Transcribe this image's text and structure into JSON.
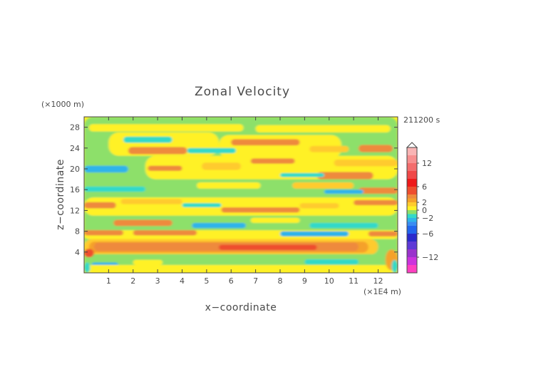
{
  "chart_data": {
    "type": "heatmap",
    "title": "Zonal Velocity",
    "xlabel": "x−coordinate",
    "ylabel": "z−coordinate",
    "x_unit": "(×1E4 m)",
    "y_unit": "(×1000 m)",
    "time_label": "211200 s",
    "xlim": [
      0,
      12.8
    ],
    "ylim": [
      0,
      30
    ],
    "x_ticks": [
      1,
      2,
      3,
      4,
      5,
      6,
      7,
      8,
      9,
      10,
      11,
      12
    ],
    "y_ticks": [
      4,
      8,
      12,
      16,
      20,
      24,
      28
    ],
    "colorbar": {
      "range": [
        -16,
        16
      ],
      "tick_values": [
        12,
        6,
        2,
        0,
        -2,
        -6,
        -12
      ],
      "tick_labels": [
        "12",
        "6",
        "2",
        "0",
        "−2",
        "−6",
        "−12"
      ],
      "levels": [
        {
          "from": -16,
          "to": -14,
          "color": "#ff3fc1"
        },
        {
          "from": -14,
          "to": -12,
          "color": "#cc33dd"
        },
        {
          "from": -12,
          "to": -10,
          "color": "#9a33cc"
        },
        {
          "from": -10,
          "to": -8,
          "color": "#5e3ad6"
        },
        {
          "from": -8,
          "to": -6,
          "color": "#2b2bcc"
        },
        {
          "from": -6,
          "to": -4,
          "color": "#2266ee"
        },
        {
          "from": -4,
          "to": -3,
          "color": "#3a8cf2"
        },
        {
          "from": -3,
          "to": -2,
          "color": "#2fb4ea"
        },
        {
          "from": -2,
          "to": -1,
          "color": "#33d9c9"
        },
        {
          "from": -1,
          "to": 0,
          "color": "#8de06a"
        },
        {
          "from": 0,
          "to": 1,
          "color": "#fff126"
        },
        {
          "from": 1,
          "to": 2,
          "color": "#ffcb2e"
        },
        {
          "from": 2,
          "to": 3,
          "color": "#f5a12a"
        },
        {
          "from": 3,
          "to": 4,
          "color": "#ee8a3c"
        },
        {
          "from": 4,
          "to": 6,
          "color": "#ee4e2e"
        },
        {
          "from": 6,
          "to": 8,
          "color": "#ee1a1a"
        },
        {
          "from": 8,
          "to": 10,
          "color": "#f04848"
        },
        {
          "from": 10,
          "to": 12,
          "color": "#f36d6d"
        },
        {
          "from": 12,
          "to": 14,
          "color": "#f79090"
        },
        {
          "from": 14,
          "to": 16,
          "color": "#f9b5b5"
        }
      ]
    },
    "background_level": 0,
    "bands": [
      {
        "x0": 0.0,
        "x1": 12.8,
        "z0": 0.0,
        "z1": 30.0,
        "v": -0.5
      },
      {
        "x0": 0.0,
        "x1": 12.8,
        "z0": 26.5,
        "z1": 30.0,
        "v": -0.5
      },
      {
        "x0": 0.2,
        "x1": 6.5,
        "z0": 27.2,
        "z1": 28.6,
        "v": 0.5
      },
      {
        "x0": 7.0,
        "x1": 12.5,
        "z0": 27.0,
        "z1": 28.4,
        "v": 0.5
      },
      {
        "x0": 1.0,
        "x1": 5.5,
        "z0": 22.5,
        "z1": 27.0,
        "v": 0.5
      },
      {
        "x0": 1.6,
        "x1": 3.6,
        "z0": 25.0,
        "z1": 26.2,
        "v": -1.5
      },
      {
        "x0": 1.8,
        "x1": 4.2,
        "z0": 22.8,
        "z1": 24.2,
        "v": 3.5
      },
      {
        "x0": 5.5,
        "x1": 10.5,
        "z0": 22.0,
        "z1": 26.5,
        "v": 0.5
      },
      {
        "x0": 6.0,
        "x1": 8.8,
        "z0": 24.5,
        "z1": 25.7,
        "v": 3.5
      },
      {
        "x0": 9.2,
        "x1": 10.8,
        "z0": 23.2,
        "z1": 24.4,
        "v": 1.5
      },
      {
        "x0": 11.2,
        "x1": 12.6,
        "z0": 23.2,
        "z1": 24.6,
        "v": 3.5
      },
      {
        "x0": 4.2,
        "x1": 6.2,
        "z0": 23.0,
        "z1": 24.0,
        "v": -1.5
      },
      {
        "x0": 0.0,
        "x1": 2.2,
        "z0": 19.0,
        "z1": 21.5,
        "v": -0.5
      },
      {
        "x0": 0.0,
        "x1": 1.8,
        "z0": 19.3,
        "z1": 20.6,
        "v": -2.5
      },
      {
        "x0": 2.5,
        "x1": 12.8,
        "z0": 18.0,
        "z1": 22.5,
        "v": 0.5
      },
      {
        "x0": 2.6,
        "x1": 4.0,
        "z0": 19.6,
        "z1": 20.6,
        "v": 3.5
      },
      {
        "x0": 4.8,
        "x1": 6.4,
        "z0": 19.8,
        "z1": 21.2,
        "v": 1.5
      },
      {
        "x0": 6.8,
        "x1": 8.6,
        "z0": 21.0,
        "z1": 22.0,
        "v": 3.5
      },
      {
        "x0": 10.2,
        "x1": 12.8,
        "z0": 20.5,
        "z1": 21.8,
        "v": 1.5
      },
      {
        "x0": 9.5,
        "x1": 11.8,
        "z0": 18.0,
        "z1": 19.4,
        "v": 3.5
      },
      {
        "x0": 8.0,
        "x1": 9.8,
        "z0": 18.4,
        "z1": 19.2,
        "v": -1.5
      },
      {
        "x0": 2.2,
        "x1": 12.8,
        "z0": 14.5,
        "z1": 17.8,
        "v": -0.5
      },
      {
        "x0": 0.0,
        "x1": 2.5,
        "z0": 15.6,
        "z1": 16.6,
        "v": -1.5
      },
      {
        "x0": 4.6,
        "x1": 7.2,
        "z0": 16.2,
        "z1": 17.4,
        "v": 0.5
      },
      {
        "x0": 8.5,
        "x1": 11.0,
        "z0": 16.2,
        "z1": 17.4,
        "v": 1.5
      },
      {
        "x0": 11.2,
        "x1": 12.8,
        "z0": 15.2,
        "z1": 16.4,
        "v": 3.5
      },
      {
        "x0": 9.8,
        "x1": 11.4,
        "z0": 15.2,
        "z1": 16.0,
        "v": -2.5
      },
      {
        "x0": 0.0,
        "x1": 12.8,
        "z0": 11.0,
        "z1": 14.5,
        "v": 0.5
      },
      {
        "x0": 0.0,
        "x1": 1.3,
        "z0": 12.4,
        "z1": 13.6,
        "v": 3.5
      },
      {
        "x0": 1.5,
        "x1": 4.0,
        "z0": 13.2,
        "z1": 14.2,
        "v": 1.5
      },
      {
        "x0": 5.6,
        "x1": 8.8,
        "z0": 11.6,
        "z1": 12.6,
        "v": 3.5
      },
      {
        "x0": 8.8,
        "x1": 10.4,
        "z0": 12.4,
        "z1": 13.4,
        "v": 1.5
      },
      {
        "x0": 11.0,
        "x1": 12.8,
        "z0": 13.0,
        "z1": 14.0,
        "v": 3.5
      },
      {
        "x0": 4.0,
        "x1": 5.6,
        "z0": 12.6,
        "z1": 13.4,
        "v": -1.5
      },
      {
        "x0": 0.0,
        "x1": 12.8,
        "z0": 8.0,
        "z1": 11.0,
        "v": -0.5
      },
      {
        "x0": 1.2,
        "x1": 3.6,
        "z0": 9.0,
        "z1": 10.2,
        "v": 3.5
      },
      {
        "x0": 4.4,
        "x1": 6.6,
        "z0": 8.6,
        "z1": 9.6,
        "v": -2.5
      },
      {
        "x0": 6.8,
        "x1": 8.8,
        "z0": 9.6,
        "z1": 10.6,
        "v": 0.5
      },
      {
        "x0": 9.2,
        "x1": 12.0,
        "z0": 8.6,
        "z1": 9.6,
        "v": -1.5
      },
      {
        "x0": 0.0,
        "x1": 12.8,
        "z0": 6.5,
        "z1": 8.2,
        "v": 0.5
      },
      {
        "x0": 0.0,
        "x1": 1.6,
        "z0": 7.2,
        "z1": 8.2,
        "v": 3.5
      },
      {
        "x0": 2.0,
        "x1": 4.6,
        "z0": 7.2,
        "z1": 8.2,
        "v": 3.5
      },
      {
        "x0": 8.0,
        "x1": 10.8,
        "z0": 7.0,
        "z1": 8.0,
        "v": -2.5
      },
      {
        "x0": 11.6,
        "x1": 12.8,
        "z0": 7.0,
        "z1": 8.0,
        "v": 3.5
      },
      {
        "x0": 0.0,
        "x1": 12.0,
        "z0": 3.5,
        "z1": 6.5,
        "v": 1.5
      },
      {
        "x0": 0.2,
        "x1": 11.6,
        "z0": 3.9,
        "z1": 6.0,
        "v": 2.5
      },
      {
        "x0": 0.4,
        "x1": 11.2,
        "z0": 4.2,
        "z1": 5.8,
        "v": 3.5
      },
      {
        "x0": 5.5,
        "x1": 9.5,
        "z0": 4.4,
        "z1": 5.4,
        "v": 4.5
      },
      {
        "x0": 0.0,
        "x1": 12.8,
        "z0": 1.5,
        "z1": 3.6,
        "v": -0.5
      },
      {
        "x0": 0.3,
        "x1": 1.4,
        "z0": 1.0,
        "z1": 2.0,
        "v": -2.5
      },
      {
        "x0": 2.0,
        "x1": 3.2,
        "z0": 1.5,
        "z1": 2.5,
        "v": 0.5
      },
      {
        "x0": 9.0,
        "x1": 11.2,
        "z0": 1.6,
        "z1": 2.6,
        "v": -1.5
      },
      {
        "x0": 0.0,
        "x1": 12.8,
        "z0": 0.0,
        "z1": 1.5,
        "v": 0.5
      },
      {
        "x0": 0.0,
        "x1": 0.4,
        "z0": 3.0,
        "z1": 4.6,
        "v": 4.5
      },
      {
        "x0": 12.3,
        "x1": 12.8,
        "z0": 0.5,
        "z1": 4.5,
        "v": 2.5
      },
      {
        "x0": 12.55,
        "x1": 12.8,
        "z0": 0.0,
        "z1": 2.5,
        "v": -1.5
      },
      {
        "x0": 0.0,
        "x1": 0.25,
        "z0": 0.0,
        "z1": 2.0,
        "v": -1.5
      }
    ]
  }
}
